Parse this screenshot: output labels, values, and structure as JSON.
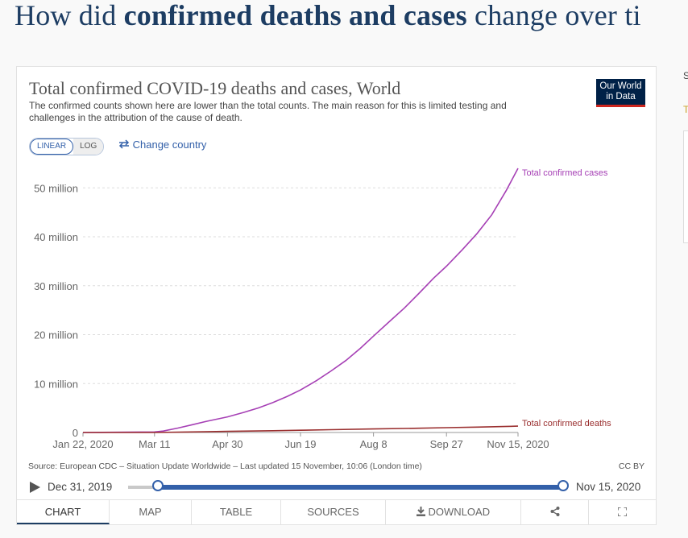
{
  "page": {
    "heading_pre": "How did ",
    "heading_bold": "confirmed deaths and cases",
    "heading_post": " change over ti"
  },
  "chart": {
    "title": "Total confirmed COVID-19 deaths and cases, World",
    "subtitle": "The confirmed counts shown here are lower than the total counts. The main reason for this is limited testing and challenges in the attribution of the cause of death.",
    "logo_line1": "Our World",
    "logo_line2": "in Data",
    "scale_linear": "LINEAR",
    "scale_log": "LOG",
    "change_country_icon": "swap-arrows-icon",
    "change_country": "Change country",
    "source": "Source: European CDC – Situation Update Worldwide – Last updated 15 November, 10:06 (London time)",
    "license": "CC BY"
  },
  "timeline": {
    "start": "Dec 31, 2019",
    "end": "Nov 15, 2020",
    "selected_start_fraction": 0,
    "selected_end_fraction": 1
  },
  "tabs": {
    "chart": "CHART",
    "map": "MAP",
    "table": "TABLE",
    "sources": "SOURCES",
    "download": "DOWNLOAD",
    "download_icon": "download-icon",
    "share_icon": "share-icon",
    "fullscreen_icon": "fullscreen-icon"
  },
  "sidebar": {
    "s_char": "S",
    "t_char": "T"
  },
  "colors": {
    "cases": "#a640b5",
    "deaths": "#9a2f2f",
    "accent": "#3360a9",
    "brand": "#002147"
  },
  "chart_data": {
    "type": "line",
    "title": "Total confirmed COVID-19 deaths and cases, World",
    "xlabel": "",
    "ylabel": "",
    "x_unit": "days since Jan 22, 2020",
    "x_ticks": [
      {
        "day": 0,
        "label": "Jan 22, 2020"
      },
      {
        "day": 49,
        "label": "Mar 11"
      },
      {
        "day": 99,
        "label": "Apr 30"
      },
      {
        "day": 149,
        "label": "Jun 19"
      },
      {
        "day": 199,
        "label": "Aug 8"
      },
      {
        "day": 249,
        "label": "Sep 27"
      },
      {
        "day": 298,
        "label": "Nov 15, 2020"
      }
    ],
    "y_ticks": [
      {
        "value": 0,
        "label": "0"
      },
      {
        "value": 10000000,
        "label": "10 million"
      },
      {
        "value": 20000000,
        "label": "20 million"
      },
      {
        "value": 30000000,
        "label": "30 million"
      },
      {
        "value": 40000000,
        "label": "40 million"
      },
      {
        "value": 50000000,
        "label": "50 million"
      }
    ],
    "xlim": [
      0,
      298
    ],
    "ylim": [
      0,
      54000000
    ],
    "series": [
      {
        "name": "Total confirmed cases",
        "color": "#a640b5",
        "x": [
          0,
          30,
          49,
          55,
          65,
          75,
          85,
          99,
          110,
          120,
          130,
          140,
          149,
          160,
          170,
          180,
          190,
          199,
          210,
          220,
          230,
          240,
          249,
          260,
          270,
          280,
          290,
          298
        ],
        "y": [
          500,
          80000,
          120000,
          300000,
          900000,
          1600000,
          2300000,
          3200000,
          4100000,
          5000000,
          6100000,
          7400000,
          8700000,
          10600000,
          12600000,
          14700000,
          17200000,
          19700000,
          22700000,
          25400000,
          28400000,
          31500000,
          34000000,
          37400000,
          40700000,
          44500000,
          49500000,
          54000000
        ]
      },
      {
        "name": "Total confirmed deaths",
        "color": "#9a2f2f",
        "x": [
          0,
          49,
          70,
          99,
          130,
          149,
          170,
          199,
          230,
          249,
          270,
          298
        ],
        "y": [
          0,
          4300,
          100000,
          230000,
          370000,
          460000,
          570000,
          720000,
          880000,
          990000,
          1100000,
          1300000
        ]
      }
    ],
    "legend_position": "end-of-line labels",
    "grid": true
  }
}
